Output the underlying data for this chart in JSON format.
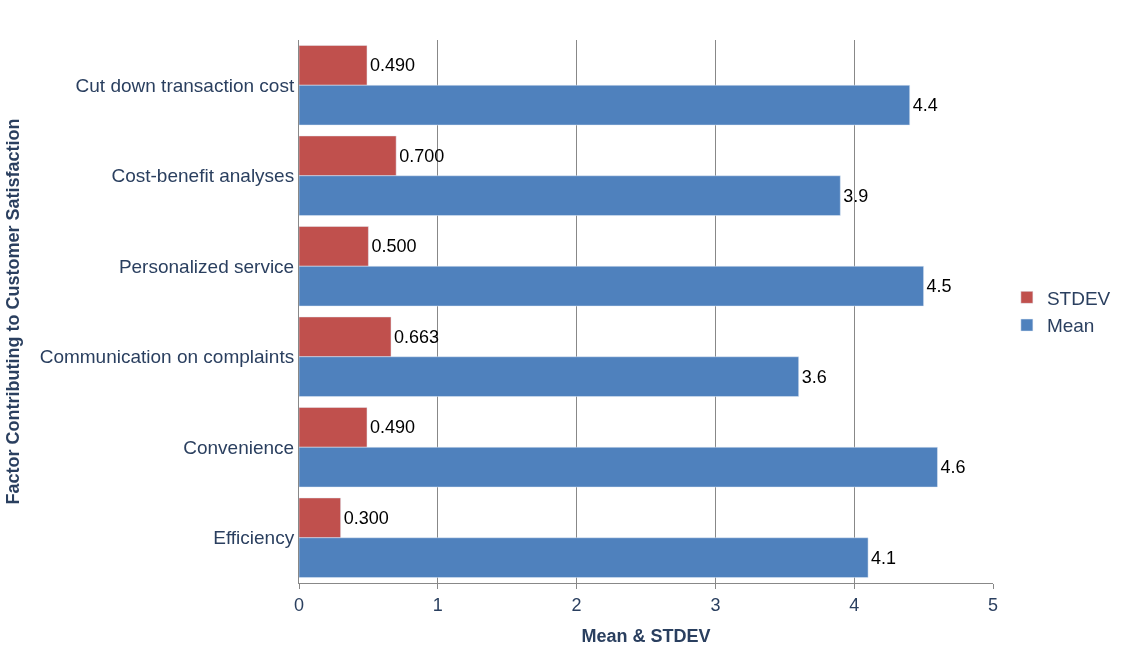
{
  "chart_data": {
    "type": "bar",
    "orientation": "horizontal",
    "xlabel": "Mean & STDEV",
    "ylabel": "Factor Contributing to Customer Satisfaction",
    "categories": [
      "Cut down transaction cost",
      "Cost-benefit analyses",
      "Personalized service",
      "Communication on complaints",
      "Convenience",
      "Efficiency"
    ],
    "series": [
      {
        "name": "STDEV",
        "color": "#c0504d",
        "values": [
          0.49,
          0.7,
          0.5,
          0.663,
          0.49,
          0.3
        ],
        "value_labels": [
          "0.490",
          "0.700",
          "0.500",
          "0.663",
          "0.490",
          "0.300"
        ]
      },
      {
        "name": "Mean",
        "color": "#4f81bd",
        "values": [
          4.4,
          3.9,
          4.5,
          3.6,
          4.6,
          4.1
        ],
        "value_labels": [
          "4.4",
          "3.9",
          "4.5",
          "3.6",
          "4.6",
          "4.1"
        ]
      }
    ],
    "xlim": [
      0,
      5
    ],
    "xticks": [
      0,
      1,
      2,
      3,
      4,
      5
    ],
    "grid": "x",
    "legend": "right"
  }
}
